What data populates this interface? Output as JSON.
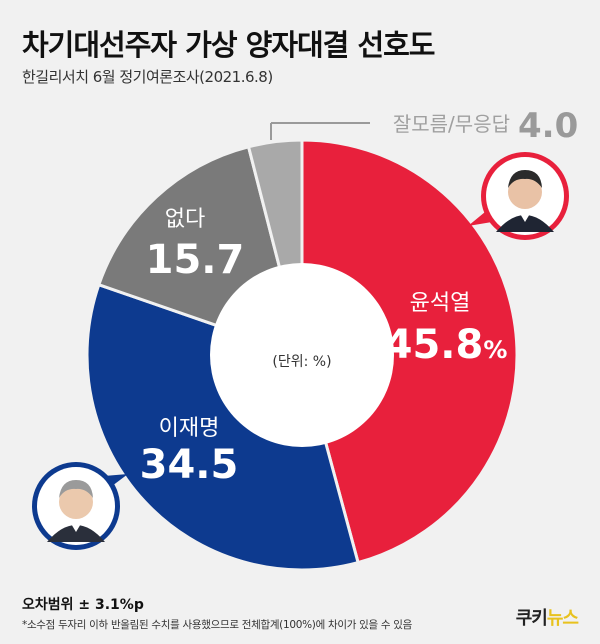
{
  "header": {
    "title": "차기대선주자 가상 양자대결 선호도",
    "subtitle": "한길리서치 6월 정기여론조사(2021.6.8)"
  },
  "chart_data": {
    "type": "pie",
    "style": "donut",
    "unit_label": "(단위: %)",
    "slices": [
      {
        "label": "윤석열",
        "value": 45.8,
        "value_text": "45.8",
        "suffix": "%",
        "color": "#e8203c"
      },
      {
        "label": "이재명",
        "value": 34.5,
        "value_text": "34.5",
        "suffix": "",
        "color": "#0d3a8f"
      },
      {
        "label": "없다",
        "value": 15.7,
        "value_text": "15.7",
        "suffix": "",
        "color": "#7a7a7a"
      },
      {
        "label": "잘모름/무응답",
        "value": 4.0,
        "value_text": "4.0",
        "suffix": "",
        "color": "#a9a9a9"
      }
    ]
  },
  "avatars": {
    "right_person": "person-photo-icon",
    "left_person": "person-photo-icon"
  },
  "footer": {
    "margin_of_error": "오차범위 ± 3.1%p",
    "note": "*소수점 두자리 이하 반올림된 수치를 사용했으므로 전체합계(100%)에 차이가 있을 수 있음",
    "logo_main": "쿠키",
    "logo_accent": "뉴스"
  }
}
